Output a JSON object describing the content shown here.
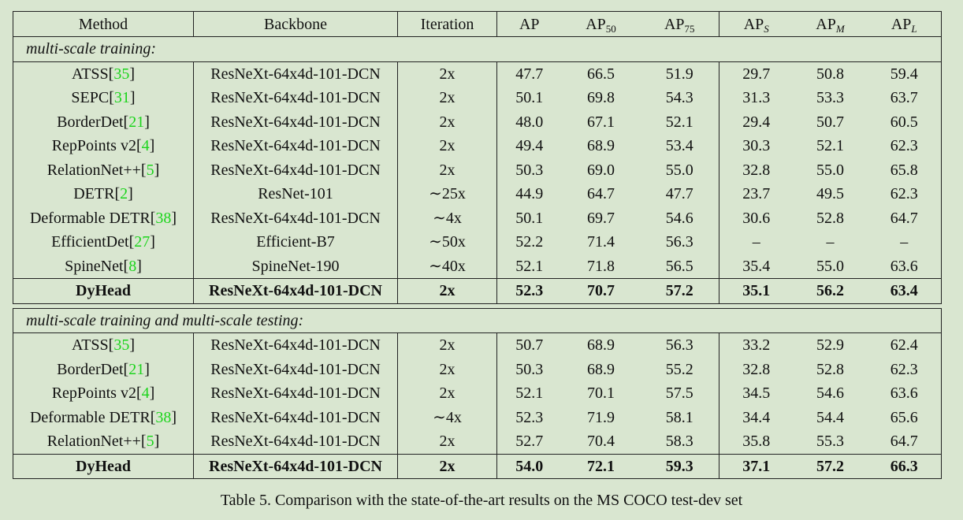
{
  "header": {
    "method": "Method",
    "backbone": "Backbone",
    "iteration": "Iteration",
    "ap": "AP",
    "ap50": {
      "base": "AP",
      "sub": "50"
    },
    "ap75": {
      "base": "AP",
      "sub": "75"
    },
    "aps": {
      "base": "AP",
      "sub": "S"
    },
    "apm": {
      "base": "AP",
      "sub": "M"
    },
    "apl": {
      "base": "AP",
      "sub": "L"
    }
  },
  "sections": [
    {
      "title": "multi-scale training:",
      "rows": [
        {
          "name": "ATSS",
          "ref": "35",
          "backbone": "ResNeXt-64x4d-101-DCN",
          "iteration": "2x",
          "ap": "47.7",
          "ap50": "66.5",
          "ap75": "51.9",
          "aps": "29.7",
          "apm": "50.8",
          "apl": "59.4"
        },
        {
          "name": "SEPC",
          "ref": "31",
          "backbone": "ResNeXt-64x4d-101-DCN",
          "iteration": "2x",
          "ap": "50.1",
          "ap50": "69.8",
          "ap75": "54.3",
          "aps": "31.3",
          "apm": "53.3",
          "apl": "63.7"
        },
        {
          "name": "BorderDet",
          "ref": "21",
          "backbone": "ResNeXt-64x4d-101-DCN",
          "iteration": "2x",
          "ap": "48.0",
          "ap50": "67.1",
          "ap75": "52.1",
          "aps": "29.4",
          "apm": "50.7",
          "apl": "60.5"
        },
        {
          "name": "RepPoints v2",
          "ref": "4",
          "backbone": "ResNeXt-64x4d-101-DCN",
          "iteration": "2x",
          "ap": "49.4",
          "ap50": "68.9",
          "ap75": "53.4",
          "aps": "30.3",
          "apm": "52.1",
          "apl": "62.3"
        },
        {
          "name": "RelationNet++",
          "ref": "5",
          "backbone": "ResNeXt-64x4d-101-DCN",
          "iteration": "2x",
          "ap": "50.3",
          "ap50": "69.0",
          "ap75": "55.0",
          "aps": "32.8",
          "apm": "55.0",
          "apl": "65.8"
        },
        {
          "name": "DETR",
          "ref": "2",
          "backbone": "ResNet-101",
          "iteration": "∼25x",
          "ap": "44.9",
          "ap50": "64.7",
          "ap75": "47.7",
          "aps": "23.7",
          "apm": "49.5",
          "apl": "62.3"
        },
        {
          "name": "Deformable DETR",
          "ref": "38",
          "backbone": "ResNeXt-64x4d-101-DCN",
          "iteration": "∼4x",
          "ap": "50.1",
          "ap50": "69.7",
          "ap75": "54.6",
          "aps": "30.6",
          "apm": "52.8",
          "apl": "64.7"
        },
        {
          "name": "EfficientDet",
          "ref": "27",
          "backbone": "Efficient-B7",
          "iteration": "∼50x",
          "ap": "52.2",
          "ap50": "71.4",
          "ap75": "56.3",
          "aps": "–",
          "apm": "–",
          "apl": "–"
        },
        {
          "name": "SpineNet",
          "ref": "8",
          "backbone": "SpineNet-190",
          "iteration": "∼40x",
          "ap": "52.1",
          "ap50": "71.8",
          "ap75": "56.5",
          "aps": "35.4",
          "apm": "55.0",
          "apl": "63.6"
        }
      ],
      "ours": {
        "name": "DyHead",
        "backbone": "ResNeXt-64x4d-101-DCN",
        "iteration": "2x",
        "ap": "52.3",
        "ap50": "70.7",
        "ap75": "57.2",
        "aps": "35.1",
        "apm": "56.2",
        "apl": "63.4"
      }
    },
    {
      "title": "multi-scale training and multi-scale testing:",
      "rows": [
        {
          "name": "ATSS",
          "ref": "35",
          "backbone": "ResNeXt-64x4d-101-DCN",
          "iteration": "2x",
          "ap": "50.7",
          "ap50": "68.9",
          "ap75": "56.3",
          "aps": "33.2",
          "apm": "52.9",
          "apl": "62.4"
        },
        {
          "name": "BorderDet",
          "ref": "21",
          "backbone": "ResNeXt-64x4d-101-DCN",
          "iteration": "2x",
          "ap": "50.3",
          "ap50": "68.9",
          "ap75": "55.2",
          "aps": "32.8",
          "apm": "52.8",
          "apl": "62.3"
        },
        {
          "name": "RepPoints v2",
          "ref": "4",
          "backbone": "ResNeXt-64x4d-101-DCN",
          "iteration": "2x",
          "ap": "52.1",
          "ap50": "70.1",
          "ap75": "57.5",
          "aps": "34.5",
          "apm": "54.6",
          "apl": "63.6"
        },
        {
          "name": "Deformable DETR",
          "ref": "38",
          "backbone": "ResNeXt-64x4d-101-DCN",
          "iteration": "∼4x",
          "ap": "52.3",
          "ap50": "71.9",
          "ap75": "58.1",
          "aps": "34.4",
          "apm": "54.4",
          "apl": "65.6"
        },
        {
          "name": "RelationNet++",
          "ref": "5",
          "backbone": "ResNeXt-64x4d-101-DCN",
          "iteration": "2x",
          "ap": "52.7",
          "ap50": "70.4",
          "ap75": "58.3",
          "aps": "35.8",
          "apm": "55.3",
          "apl": "64.7"
        }
      ],
      "ours": {
        "name": "DyHead",
        "backbone": "ResNeXt-64x4d-101-DCN",
        "iteration": "2x",
        "ap": "54.0",
        "ap50": "72.1",
        "ap75": "59.3",
        "aps": "37.1",
        "apm": "57.2",
        "apl": "66.3"
      }
    }
  ],
  "caption": "Table 5. Comparison with the state-of-the-art results on the MS COCO test-dev set"
}
